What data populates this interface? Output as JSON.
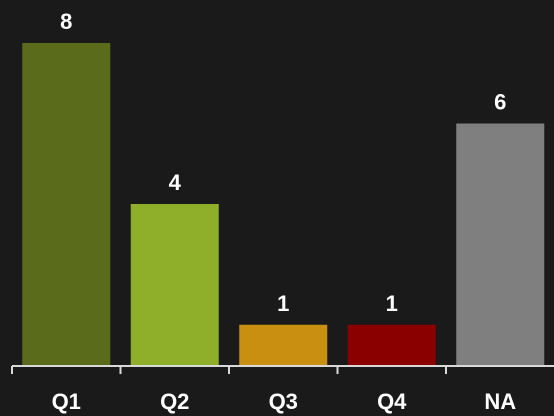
{
  "chart_data": {
    "type": "bar",
    "categories": [
      "Q1",
      "Q2",
      "Q3",
      "Q4",
      "NA"
    ],
    "values": [
      8,
      4,
      1,
      1,
      6
    ],
    "data_labels": [
      "8",
      "4",
      "1",
      "1",
      "6"
    ],
    "colors": [
      "#5b6b1c",
      "#8fae2a",
      "#c98f10",
      "#8a0000",
      "#7f7f7f"
    ],
    "background": "#1a1a1a",
    "axis_color": "#d9d9d9",
    "label_color": "#ffffff",
    "ylim": [
      0,
      8
    ],
    "title": "",
    "xlabel": "",
    "ylabel": "",
    "grid": false,
    "legend": false
  }
}
